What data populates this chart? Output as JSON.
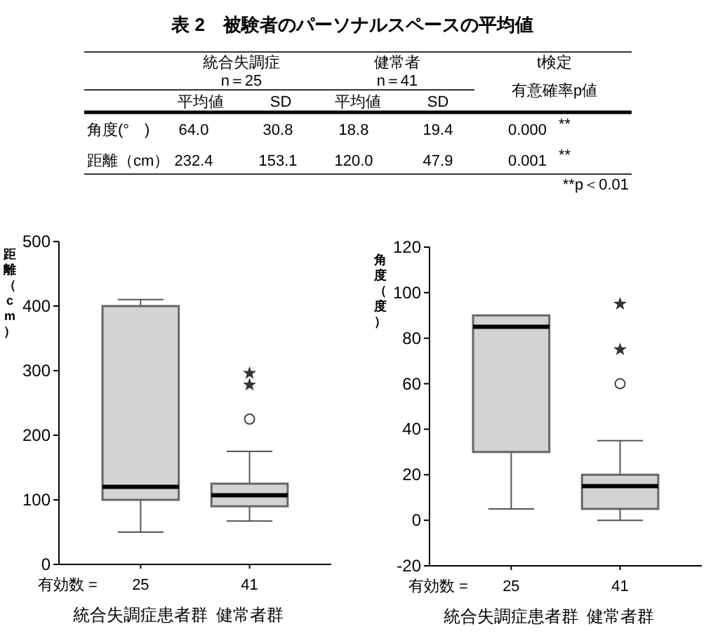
{
  "chart_data": [
    {
      "type": "other",
      "title": "表 2　被験者のパーソナルスペースの平均値",
      "annotations": [
        "統合失調症",
        "n＝25",
        "健常者",
        "n＝41",
        "t検定",
        "有意確率p値",
        "平均値",
        "SD",
        "平均値",
        "SD",
        "角度(°　)",
        "64.0",
        "30.8",
        "18.8",
        "19.4",
        "0.000",
        "**",
        "距離（cm）",
        "232.4",
        "153.1",
        "120.0",
        "47.9",
        "0.001",
        "**",
        "**p＜0.01"
      ]
    },
    {
      "type": "box",
      "categories": [
        "統合失調症患者群",
        "健常者群"
      ],
      "ylabel": "距離（cm）",
      "ylim": [
        0,
        500
      ],
      "yticks": [
        0,
        100,
        200,
        300,
        400,
        500
      ],
      "series": [
        {
          "color": "#d3d3d3",
          "boxes": [
            {
              "low": 50,
              "q1": 100,
              "median": 120,
              "q3": 400,
              "high": 410
            },
            {
              "low": 67,
              "q1": 90,
              "median": 107,
              "q3": 125,
              "high": 175,
              "outliers": [
                225
              ]
            }
          ]
        },
        {
          "type": "scatter",
          "marker": "star",
          "color": "#333333",
          "x": [
            "健常者群",
            "健常者群"
          ],
          "values": [
            278,
            296
          ]
        }
      ],
      "annotations": [
        "有効数 =",
        "25",
        "41"
      ]
    },
    {
      "type": "box",
      "categories": [
        "統合失調症患者群",
        "健常者群"
      ],
      "ylabel": "角度（度）",
      "ylim": [
        -20,
        120
      ],
      "yticks": [
        -20,
        0,
        20,
        40,
        60,
        80,
        100,
        120
      ],
      "series": [
        {
          "color": "#d3d3d3",
          "boxes": [
            {
              "low": 5,
              "q1": 30,
              "median": 85,
              "q3": 90,
              "high": 90
            },
            {
              "low": 0,
              "q1": 5,
              "median": 15,
              "q3": 20,
              "high": 35,
              "outliers": [
                60
              ]
            }
          ]
        },
        {
          "type": "scatter",
          "marker": "star",
          "color": "#333333",
          "x": [
            "健常者群",
            "健常者群"
          ],
          "values": [
            75,
            95
          ]
        }
      ],
      "annotations": [
        "有効数 =",
        "25",
        "41"
      ]
    }
  ]
}
